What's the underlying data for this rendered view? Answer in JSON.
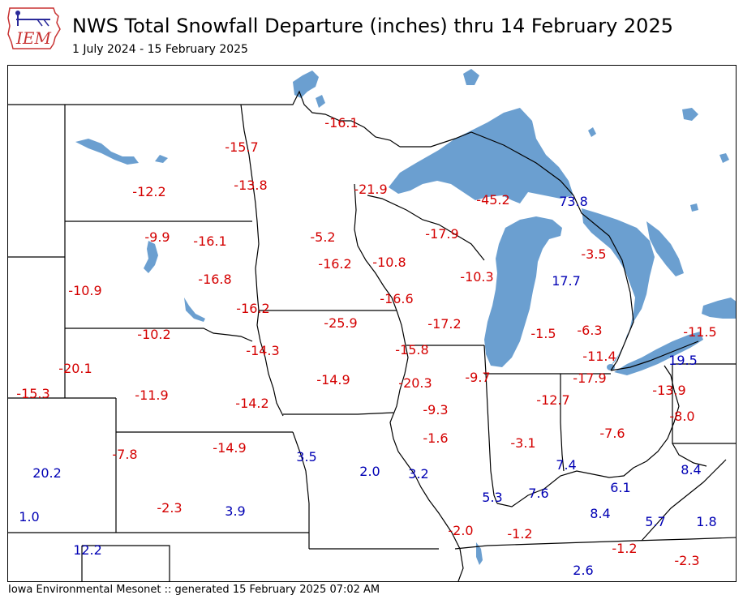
{
  "header": {
    "logo_text": "IEM",
    "title": "NWS Total Snowfall Departure (inches) thru 14 February 2025",
    "subtitle": "1 July 2024 - 15 February 2025"
  },
  "footer": {
    "credit": "Iowa Environmental Mesonet :: generated 15 February 2025 07:02 AM"
  },
  "colors": {
    "negative": "#d40000",
    "positive": "#0000b4",
    "water": "#6b9fd0",
    "border": "#000000"
  },
  "map_data": {
    "units": "inches",
    "values": [
      {
        "value": "-16.1"
      },
      {
        "value": "-15.7"
      },
      {
        "value": "-13.8"
      },
      {
        "value": "-12.2"
      },
      {
        "value": "-21.9"
      },
      {
        "value": "-45.2"
      },
      {
        "value": "73.8"
      },
      {
        "value": "-9.9"
      },
      {
        "value": "-16.1"
      },
      {
        "value": "-5.2"
      },
      {
        "value": "-17.9"
      },
      {
        "value": "-16.2"
      },
      {
        "value": "-10.8"
      },
      {
        "value": "-3.5"
      },
      {
        "value": "-10.3"
      },
      {
        "value": "-16.8"
      },
      {
        "value": "17.7"
      },
      {
        "value": "-10.9"
      },
      {
        "value": "-16.6"
      },
      {
        "value": "-16.2"
      },
      {
        "value": "-25.9"
      },
      {
        "value": "-17.2"
      },
      {
        "value": "-10.2"
      },
      {
        "value": "-1.5"
      },
      {
        "value": "-6.3"
      },
      {
        "value": "-11.5"
      },
      {
        "value": "-14.3"
      },
      {
        "value": "-15.8"
      },
      {
        "value": "-11.4"
      },
      {
        "value": "19.5"
      },
      {
        "value": "-20.1"
      },
      {
        "value": "-14.9"
      },
      {
        "value": "-20.3"
      },
      {
        "value": "-9.7"
      },
      {
        "value": "-17.9"
      },
      {
        "value": "-15.3"
      },
      {
        "value": "-11.9"
      },
      {
        "value": "-14.2"
      },
      {
        "value": "-12.7"
      },
      {
        "value": "-13.9"
      },
      {
        "value": "-9.3"
      },
      {
        "value": "-8.0"
      },
      {
        "value": "-7.6"
      },
      {
        "value": "-1.6"
      },
      {
        "value": "-7.8"
      },
      {
        "value": "-14.9"
      },
      {
        "value": "3.5"
      },
      {
        "value": "-3.1"
      },
      {
        "value": "20.2"
      },
      {
        "value": "2.0"
      },
      {
        "value": "3.2"
      },
      {
        "value": "7.4"
      },
      {
        "value": "8.4"
      },
      {
        "value": "6.1"
      },
      {
        "value": "5.3"
      },
      {
        "value": "7.6"
      },
      {
        "value": "-2.3"
      },
      {
        "value": "3.9"
      },
      {
        "value": "1.0"
      },
      {
        "value": "8.4"
      },
      {
        "value": "5.7"
      },
      {
        "value": "1.8"
      },
      {
        "value": "-2.0"
      },
      {
        "value": "-1.2"
      },
      {
        "value": "12.2"
      },
      {
        "value": "-1.2"
      },
      {
        "value": "-2.3"
      },
      {
        "value": "2.6"
      }
    ]
  }
}
